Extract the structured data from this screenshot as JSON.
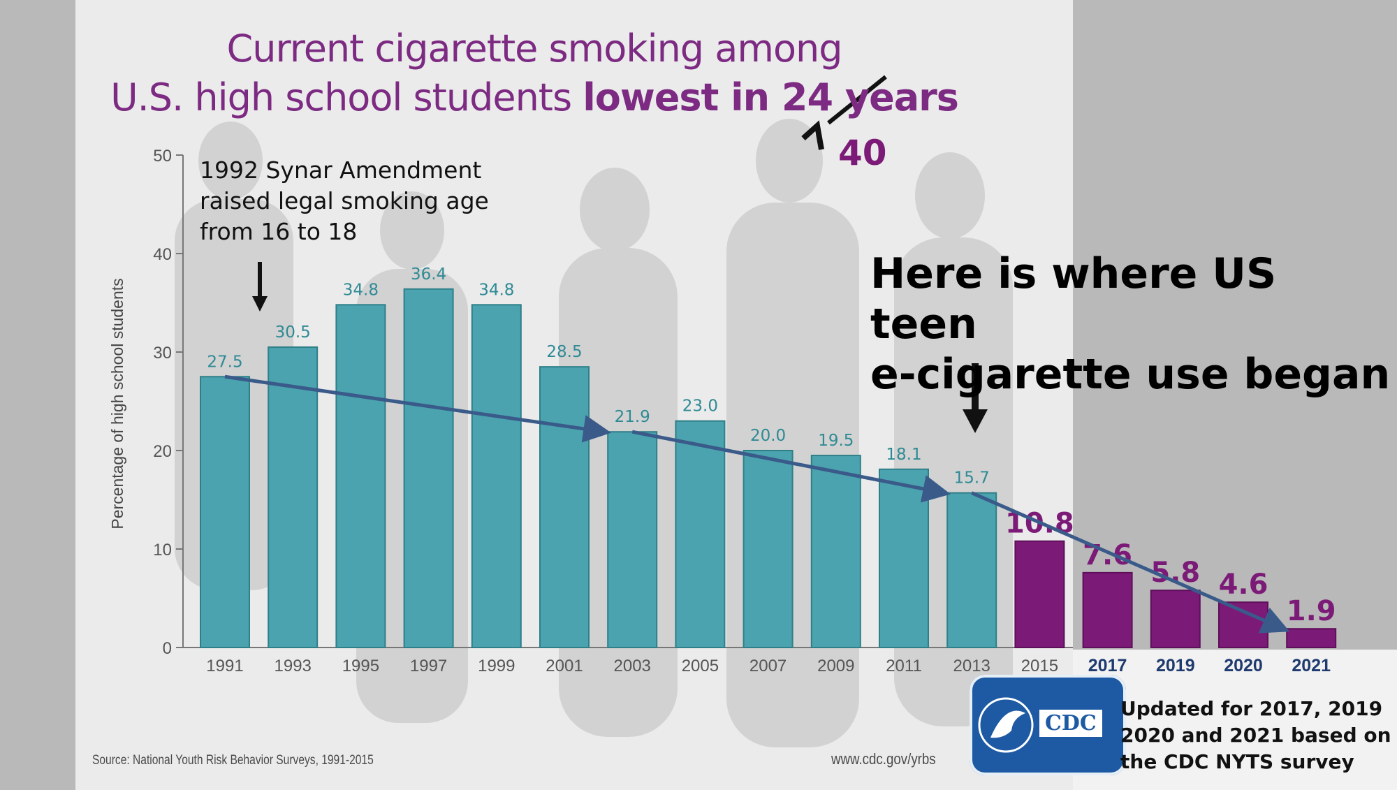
{
  "title": {
    "line1": "Current cigarette smoking among",
    "line2_regular": "U.S. high school students ",
    "line2_bold_a": "lowest in ",
    "line2_struck": "24",
    "line2_bold_b": " years",
    "correction": "40"
  },
  "annotations": {
    "synar": "1992 Synar Amendment\nraised legal smoking age\nfrom 16 to 18",
    "ecig": "Here is where US teen\ne-cigarette use began"
  },
  "source": "Source: National Youth Risk Behavior Surveys, 1991-2015",
  "site": "www.cdc.gov/yrbs",
  "update_note": "Updated for 2017, 2019\n2020 and 2021 based on\nthe CDC NYTS survey",
  "logo_text": "CDC",
  "colors": {
    "teal": "#4aa3ae",
    "purple": "#7c1a77",
    "year_new": "#1f3a6e",
    "trend": "#3a5a8a",
    "title": "#7c2a82"
  },
  "chart_data": {
    "type": "bar",
    "ylabel": "Percentage of high school students",
    "ylim": [
      0,
      50
    ],
    "yticks": [
      0,
      10,
      20,
      30,
      40,
      50
    ],
    "categories": [
      "1991",
      "1993",
      "1995",
      "1997",
      "1999",
      "2001",
      "2003",
      "2005",
      "2007",
      "2009",
      "2011",
      "2013",
      "2015",
      "2017",
      "2019",
      "2020",
      "2021"
    ],
    "values": [
      27.5,
      30.5,
      34.8,
      36.4,
      34.8,
      28.5,
      21.9,
      23.0,
      20.0,
      19.5,
      18.1,
      15.7,
      10.8,
      7.6,
      5.8,
      4.6,
      1.9
    ],
    "labels": [
      "27.5",
      "30.5",
      "34.8",
      "36.4",
      "34.8",
      "28.5",
      "21.9",
      "23.0",
      "20.0",
      "19.5",
      "18.1",
      "15.7",
      "10.8",
      "7.6",
      "5.8",
      "4.6",
      "1.9"
    ],
    "grid": false,
    "trend_arrows": [
      [
        "1991",
        "2003"
      ],
      [
        "2003",
        "2013"
      ],
      [
        "2013",
        "2021"
      ]
    ]
  }
}
